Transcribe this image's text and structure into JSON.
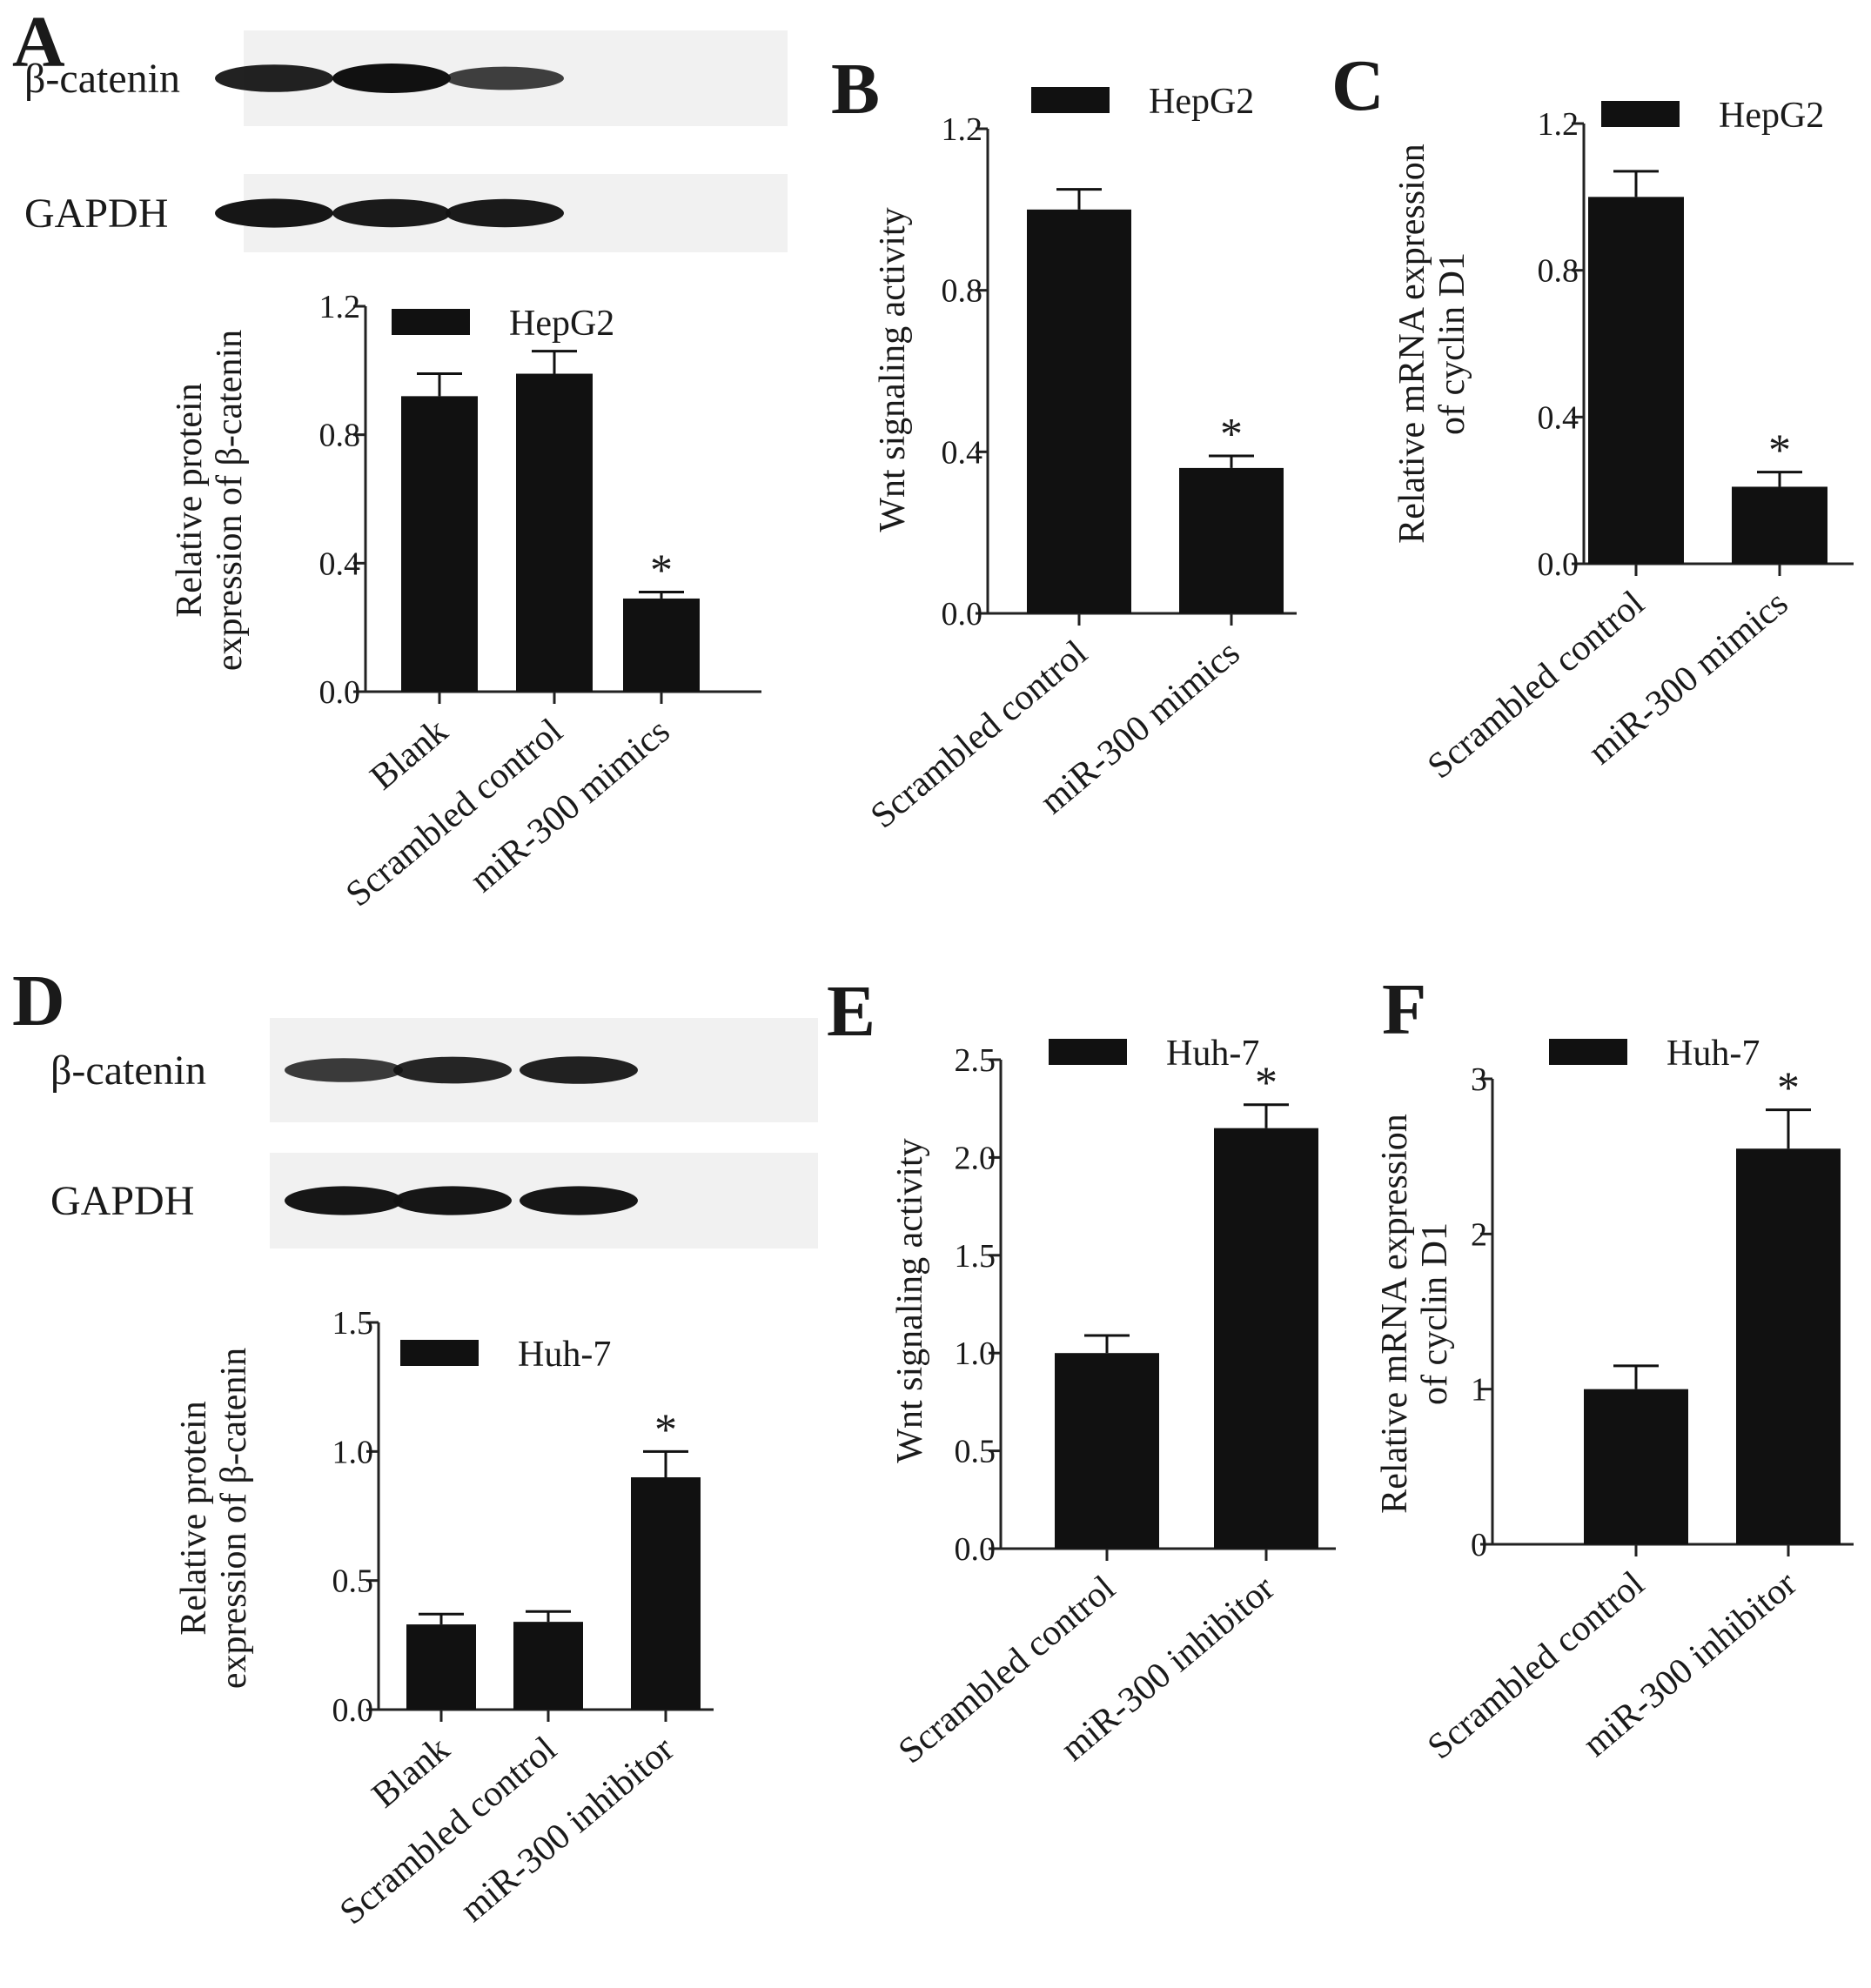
{
  "chart_data": [
    {
      "panel": "A",
      "type": "bar",
      "blot": {
        "bands": [
          "β-catenin",
          "GAPDH"
        ],
        "band_intensity": [
          [
            0.85,
            1.0,
            0.55
          ],
          [
            0.95,
            0.9,
            0.9
          ]
        ]
      },
      "legend": "HepG2",
      "legend_placement": "top-right",
      "ylabel": [
        "Relative protein",
        "expression of β-catenin"
      ],
      "ylim": [
        0,
        1.2
      ],
      "yticks": [
        "0.0",
        "0.4",
        "0.8",
        "1.2"
      ],
      "categories": [
        "Blank",
        "Scrambled control",
        "miR-300 mimics"
      ],
      "values": [
        0.92,
        0.99,
        0.29
      ],
      "errors": [
        0.07,
        0.07,
        0.02
      ],
      "annotations": [
        "",
        "",
        "*"
      ]
    },
    {
      "panel": "B",
      "type": "bar",
      "legend": "HepG2",
      "legend_placement": "top-right",
      "ylabel": [
        "Wnt signaling activity"
      ],
      "ylim": [
        0,
        1.2
      ],
      "yticks": [
        "0.0",
        "0.4",
        "0.8",
        "1.2"
      ],
      "categories": [
        "Scrambled control",
        "miR-300 mimics"
      ],
      "values": [
        1.0,
        0.36
      ],
      "errors": [
        0.05,
        0.03
      ],
      "annotations": [
        "",
        "*"
      ]
    },
    {
      "panel": "C",
      "type": "bar",
      "legend": "HepG2",
      "legend_placement": "top-right",
      "ylabel": [
        "Relative mRNA expression",
        "of cyclin D1"
      ],
      "ylim": [
        0,
        1.2
      ],
      "yticks": [
        "0.0",
        "0.4",
        "0.8",
        "1.2"
      ],
      "categories": [
        "Scrambled control",
        "miR-300 mimics"
      ],
      "values": [
        1.0,
        0.21
      ],
      "errors": [
        0.07,
        0.04
      ],
      "annotations": [
        "",
        "*"
      ]
    },
    {
      "panel": "D",
      "type": "bar",
      "blot": {
        "bands": [
          "β-catenin",
          "GAPDH"
        ],
        "band_intensity": [
          [
            0.6,
            0.8,
            0.85
          ],
          [
            0.95,
            0.95,
            0.95
          ]
        ]
      },
      "legend": "Huh-7",
      "legend_placement": "top-right",
      "ylabel": [
        "Relative protein",
        "expression of β-catenin"
      ],
      "ylim": [
        0,
        1.5
      ],
      "yticks": [
        "0.0",
        "0.5",
        "1.0",
        "1.5"
      ],
      "categories": [
        "Blank",
        "Scrambled control",
        "miR-300 inhibitor"
      ],
      "values": [
        0.33,
        0.34,
        0.9
      ],
      "errors": [
        0.04,
        0.04,
        0.1
      ],
      "annotations": [
        "",
        "",
        "*"
      ]
    },
    {
      "panel": "E",
      "type": "bar",
      "legend": "Huh-7",
      "legend_placement": "top-right",
      "ylabel": [
        "Wnt signaling activity"
      ],
      "ylim": [
        0,
        2.5
      ],
      "yticks": [
        "0.0",
        "0.5",
        "1.0",
        "1.5",
        "2.0",
        "2.5"
      ],
      "categories": [
        "Scrambled control",
        "miR-300 inhibitor"
      ],
      "values": [
        1.0,
        2.15
      ],
      "errors": [
        0.09,
        0.12
      ],
      "annotations": [
        "",
        "*"
      ]
    },
    {
      "panel": "F",
      "type": "bar",
      "legend": "Huh-7",
      "legend_placement": "top-right",
      "ylabel": [
        "Relative mRNA expression",
        "of cyclin D1"
      ],
      "ylim": [
        0,
        3
      ],
      "yticks": [
        "0",
        "1",
        "2",
        "3"
      ],
      "categories": [
        "Scrambled control",
        "miR-300 inhibitor"
      ],
      "values": [
        1.0,
        2.55
      ],
      "errors": [
        0.15,
        0.25
      ],
      "annotations": [
        "",
        "*"
      ]
    }
  ]
}
